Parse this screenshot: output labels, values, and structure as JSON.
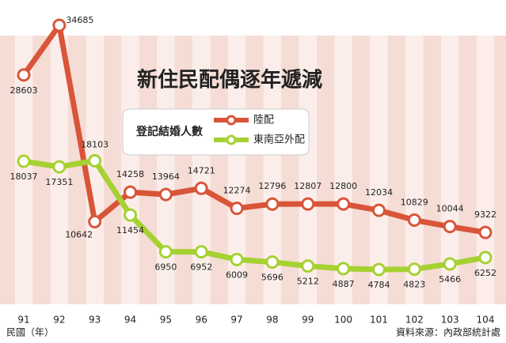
{
  "chart_data": {
    "type": "line",
    "title": "新住民配偶逐年遞減",
    "legend_title": "登記結婚人數",
    "categories": [
      "91",
      "92",
      "93",
      "94",
      "95",
      "96",
      "97",
      "98",
      "99",
      "100",
      "101",
      "102",
      "103",
      "104"
    ],
    "series": [
      {
        "name": "陸配",
        "color": "#d9553a",
        "values": [
          28603,
          34685,
          10642,
          14258,
          13964,
          14721,
          12274,
          12796,
          12807,
          12800,
          12034,
          10829,
          10044,
          9322
        ]
      },
      {
        "name": "東南亞外配",
        "color": "#a6d132",
        "values": [
          18037,
          17351,
          18103,
          11454,
          6950,
          6952,
          6009,
          5696,
          5212,
          4887,
          4784,
          4823,
          5466,
          6252
        ]
      }
    ],
    "x_label": "民國（年）",
    "source": "資料來源：內政部統計處"
  }
}
